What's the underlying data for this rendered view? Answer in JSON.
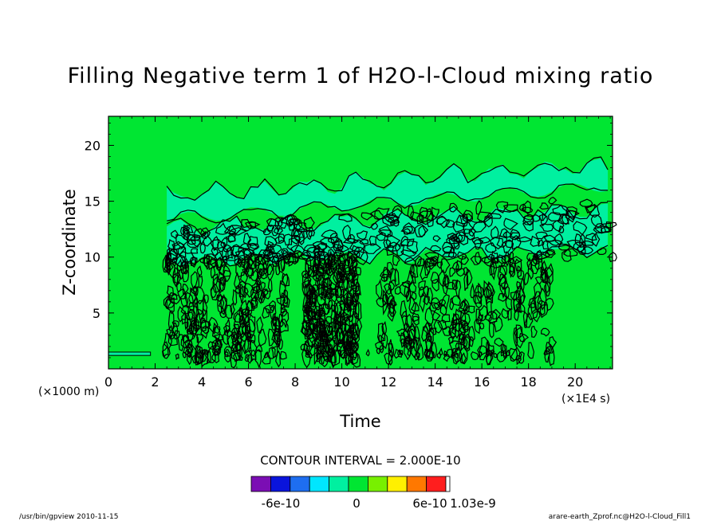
{
  "chart_data": {
    "type": "heatmap",
    "title": "Filling Negative term 1 of H2O-l-Cloud mixing ratio",
    "xlabel": "Time",
    "ylabel": "Z-coordinate",
    "x_unit": "(×1E4 s)",
    "y_unit": "(×1000 m)",
    "xlim": [
      0,
      21.6
    ],
    "ylim": [
      0,
      22.6
    ],
    "x_ticks": [
      0,
      2,
      4,
      6,
      8,
      10,
      12,
      14,
      16,
      18,
      20
    ],
    "y_ticks": [
      5,
      10,
      15,
      20
    ],
    "contour_interval_text": "CONTOUR INTERVAL = 2.000E-10",
    "colorbar": {
      "colors": [
        "#7b0eb4",
        "#0a14dc",
        "#1e6ef0",
        "#00e6ff",
        "#00f0a0",
        "#00e632",
        "#78f000",
        "#fff000",
        "#ff7800",
        "#ff1e1e"
      ],
      "labels": [
        "-6e-10",
        "0",
        "6e-10",
        "1.03e-9"
      ]
    },
    "background_color": "#00e632",
    "band_color": "#00f0a0"
  },
  "footer": {
    "left": "/usr/bin/gpview   2010-11-15",
    "right": "arare-earth_Zprof.nc@H2O-l-Cloud_Fill1"
  }
}
